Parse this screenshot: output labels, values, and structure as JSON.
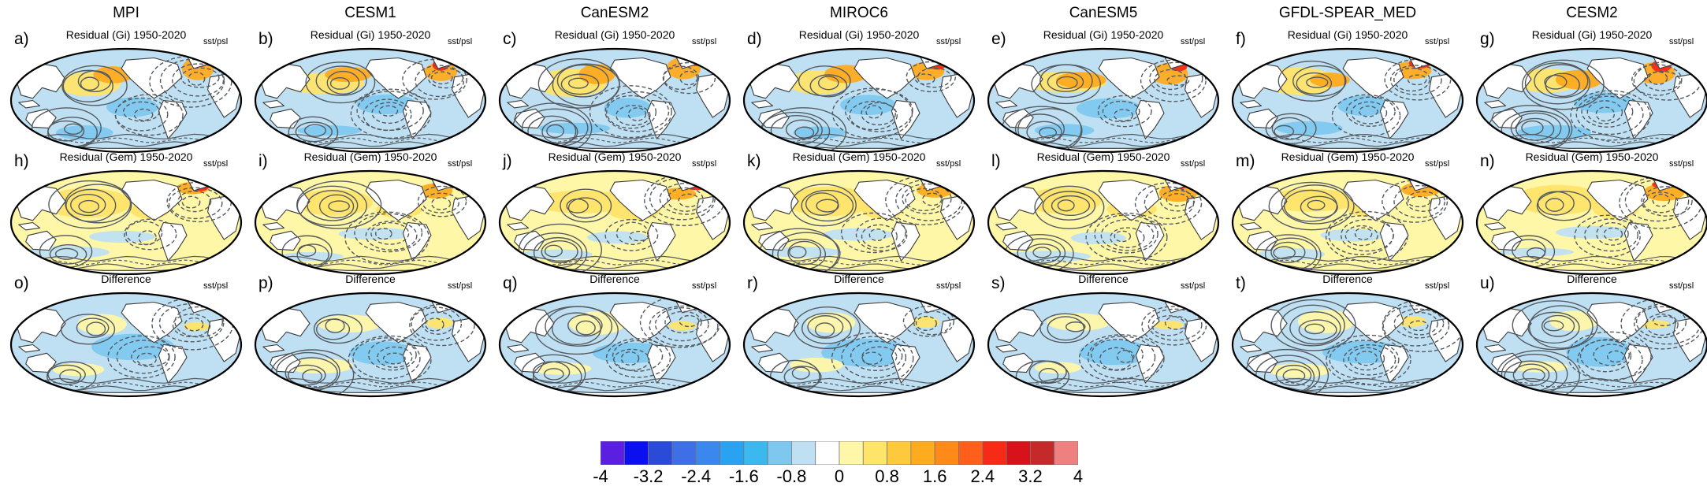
{
  "figure": {
    "columns": [
      {
        "model": "MPI",
        "panels": [
          {
            "label": "a)",
            "title": "Residual (Gi) 1950-2020",
            "var": "sst/psl"
          },
          {
            "label": "h)",
            "title": "Residual (Gem) 1950-2020",
            "var": "sst/psl"
          },
          {
            "label": "o)",
            "title": "Difference",
            "var": "sst/psl"
          }
        ]
      },
      {
        "model": "CESM1",
        "panels": [
          {
            "label": "b)",
            "title": "Residual (Gi) 1950-2020",
            "var": "sst/psl"
          },
          {
            "label": "i)",
            "title": "Residual (Gem) 1950-2020",
            "var": "sst/psl"
          },
          {
            "label": "p)",
            "title": "Difference",
            "var": "sst/psl"
          }
        ]
      },
      {
        "model": "CanESM2",
        "panels": [
          {
            "label": "c)",
            "title": "Residual (Gi) 1950-2020",
            "var": "sst/psl"
          },
          {
            "label": "j)",
            "title": "Residual (Gem) 1950-2020",
            "var": "sst/psl"
          },
          {
            "label": "q)",
            "title": "Difference",
            "var": "sst/psl"
          }
        ]
      },
      {
        "model": "MIROC6",
        "panels": [
          {
            "label": "d)",
            "title": "Residual (Gi) 1950-2020",
            "var": "sst/psl"
          },
          {
            "label": "k)",
            "title": "Residual (Gem) 1950-2020",
            "var": "sst/psl"
          },
          {
            "label": "r)",
            "title": "Difference",
            "var": "sst/psl"
          }
        ]
      },
      {
        "model": "CanESM5",
        "panels": [
          {
            "label": "e)",
            "title": "Residual (Gi) 1950-2020",
            "var": "sst/psl"
          },
          {
            "label": "l)",
            "title": "Residual (Gem) 1950-2020",
            "var": "sst/psl"
          },
          {
            "label": "s)",
            "title": "Difference",
            "var": "sst/psl"
          }
        ]
      },
      {
        "model": "GFDL-SPEAR_MED",
        "panels": [
          {
            "label": "f)",
            "title": "Residual (Gi) 1950-2020",
            "var": "sst/psl"
          },
          {
            "label": "m)",
            "title": "Residual (Gem) 1950-2020",
            "var": "sst/psl"
          },
          {
            "label": "t)",
            "title": "Difference",
            "var": "sst/psl"
          }
        ]
      },
      {
        "model": "CESM2",
        "panels": [
          {
            "label": "g)",
            "title": "Residual (Gi) 1950-2020",
            "var": "sst/psl"
          },
          {
            "label": "n)",
            "title": "Residual (Gem) 1950-2020",
            "var": "sst/psl"
          },
          {
            "label": "u)",
            "title": "Difference",
            "var": "sst/psl"
          }
        ]
      }
    ]
  },
  "colorbar": {
    "colors": [
      "#5a1fe0",
      "#0a10f0",
      "#2a4ad8",
      "#3f6fe6",
      "#3a88ee",
      "#2aa2f2",
      "#3cb8f0",
      "#7ec8ef",
      "#bfe0f3",
      "#ffffff",
      "#fff7a8",
      "#ffe46a",
      "#ffc93e",
      "#ffab1f",
      "#ff8a1a",
      "#ff5f1a",
      "#f72a17",
      "#d8121a",
      "#c42a2a",
      "#ee8080"
    ],
    "ticks": [
      "-4",
      "-3.2",
      "-2.4",
      "-1.6",
      "-0.8",
      "0",
      "0.8",
      "1.6",
      "2.4",
      "3.2",
      "4"
    ]
  },
  "palette": {
    "land": "#ffffff",
    "coast": "#3a3a3a",
    "contour": "#555a60",
    "cool_light": "#bfe0f3",
    "cool_mid": "#7ec8ef",
    "warm_light": "#fff7a8",
    "warm_mid": "#ffe46a",
    "warm_strong": "#ffab1f",
    "hot": "#f72a17"
  }
}
